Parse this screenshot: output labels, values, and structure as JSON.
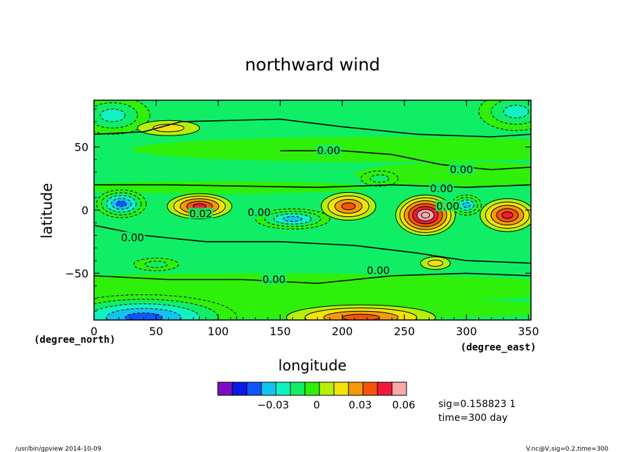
{
  "chart_data": {
    "type": "heatmap",
    "title": "northward wind",
    "xlabel": "longitude",
    "ylabel": "latitude",
    "x_units": "(degree_east)",
    "y_units": "(degree_north)",
    "xlim": [
      0,
      352
    ],
    "ylim": [
      -87,
      87
    ],
    "x_ticks": [
      0,
      50,
      100,
      150,
      200,
      250,
      300,
      350
    ],
    "y_ticks": [
      50,
      0,
      -50
    ],
    "y_tick_labels": [
      "50",
      "0",
      "−50"
    ],
    "grid": false,
    "contour_labels": [
      {
        "text": "0.00",
        "lon": 189,
        "lat": 47
      },
      {
        "text": "0.00",
        "lon": 296,
        "lat": 32
      },
      {
        "text": "0.00",
        "lon": 280,
        "lat": 17
      },
      {
        "text": "0.00",
        "lon": 285,
        "lat": 3
      },
      {
        "text": "0.02",
        "lon": 86,
        "lat": -3
      },
      {
        "text": "0.00",
        "lon": 133,
        "lat": -2
      },
      {
        "text": "0.00",
        "lon": 31,
        "lat": -22
      },
      {
        "text": "0.00",
        "lon": 229,
        "lat": -48
      },
      {
        "text": "0.00",
        "lon": 145,
        "lat": -55
      }
    ],
    "features": [
      {
        "lon": 22,
        "lat": 5,
        "value": -0.045,
        "rx": 20,
        "ry": 11
      },
      {
        "lon": 160,
        "lat": -7,
        "value": -0.04,
        "rx": 30,
        "ry": 8
      },
      {
        "lon": 300,
        "lat": 4,
        "value": -0.035,
        "rx": 12,
        "ry": 8
      },
      {
        "lon": 85,
        "lat": 3,
        "value": 0.045,
        "rx": 26,
        "ry": 10
      },
      {
        "lon": 205,
        "lat": 3,
        "value": 0.04,
        "rx": 22,
        "ry": 11
      },
      {
        "lon": 267,
        "lat": -4,
        "value": 0.065,
        "rx": 24,
        "ry": 16
      },
      {
        "lon": 333,
        "lat": -4,
        "value": 0.05,
        "rx": 22,
        "ry": 13
      },
      {
        "lon": 40,
        "lat": -85,
        "value": -0.05,
        "rx": 75,
        "ry": 18
      },
      {
        "lon": 215,
        "lat": -85,
        "value": 0.035,
        "rx": 60,
        "ry": 10
      },
      {
        "lon": 15,
        "lat": 75,
        "value": -0.025,
        "rx": 30,
        "ry": 15
      },
      {
        "lon": 340,
        "lat": 78,
        "value": -0.03,
        "rx": 30,
        "ry": 15
      },
      {
        "lon": 230,
        "lat": 25,
        "value": -0.02,
        "rx": 15,
        "ry": 6
      },
      {
        "lon": 50,
        "lat": -43,
        "value": -0.02,
        "rx": 18,
        "ry": 5
      },
      {
        "lon": 60,
        "lat": 65,
        "value": 0.015,
        "rx": 25,
        "ry": 6
      },
      {
        "lon": 275,
        "lat": -42,
        "value": 0.015,
        "rx": 12,
        "ry": 5
      }
    ],
    "colorbar": {
      "colors": [
        "#7b0ec4",
        "#0a19e6",
        "#1155ff",
        "#11c3f0",
        "#10f2c2",
        "#10ee66",
        "#2ef00a",
        "#b4f00a",
        "#f2e20a",
        "#f29a0c",
        "#f2540c",
        "#f21a3c",
        "#f8aaaa"
      ],
      "tick_labels": [
        "−0.03",
        "0",
        "0.03",
        "0.06"
      ]
    }
  },
  "annotations": {
    "sig_line": "sig=0.158823 1",
    "time_line": "time=300 day",
    "footer_left": "/usr/bin/gpview   2014-10-09",
    "footer_right": "V.nc@V,sig=0.2,time=300"
  }
}
